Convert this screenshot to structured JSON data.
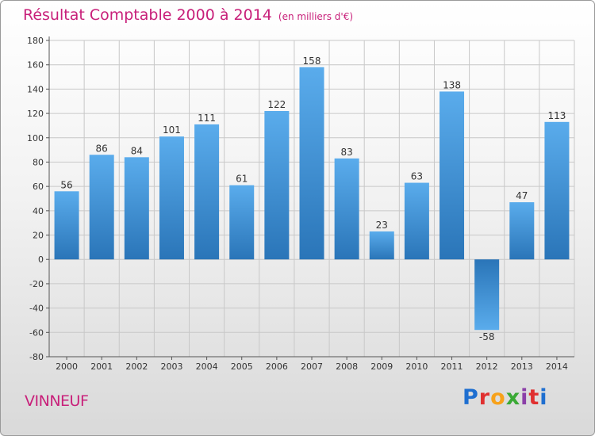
{
  "header": {
    "title": "Résultat Comptable 2000 à 2014",
    "subtitle": "(en milliers d'€)"
  },
  "footer": {
    "commune": "VINNEUF",
    "logo": "Proxiti",
    "logo_colors": [
      "#1f6fd0",
      "#e03030",
      "#f7a21b",
      "#3aa935",
      "#8b3fa8",
      "#e03030",
      "#1f6fd0"
    ]
  },
  "colors": {
    "bar_top": "#5aacec",
    "bar_bottom": "#2a75b8",
    "grid": "#c8c8c8",
    "title": "#c8207a"
  },
  "chart_data": {
    "type": "bar",
    "title": "Résultat Comptable 2000 à 2014",
    "subtitle": "(en milliers d'€)",
    "categories": [
      "2000",
      "2001",
      "2002",
      "2003",
      "2004",
      "2005",
      "2006",
      "2007",
      "2008",
      "2009",
      "2010",
      "2011",
      "2012",
      "2013",
      "2014"
    ],
    "values": [
      56,
      86,
      84,
      101,
      111,
      61,
      122,
      158,
      83,
      23,
      63,
      138,
      -58,
      47,
      113
    ],
    "ylim": [
      -80,
      180
    ],
    "yticks": [
      180,
      160,
      140,
      120,
      100,
      80,
      60,
      40,
      20,
      0,
      -20,
      -40,
      -60,
      -80
    ],
    "xlabel": "",
    "ylabel": "",
    "grid": true
  }
}
